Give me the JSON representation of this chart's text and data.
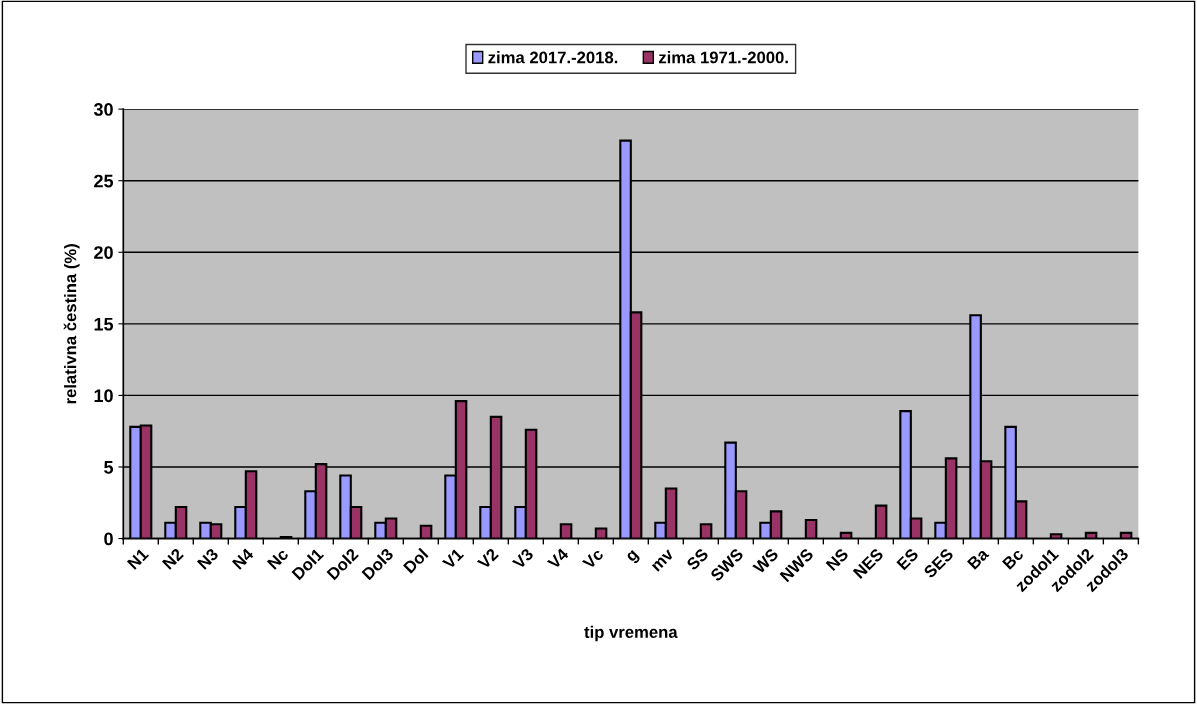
{
  "chart_data": {
    "type": "bar",
    "xlabel": "tip vremena",
    "ylabel": "relativna čestina (%)",
    "categories": [
      "N1",
      "N2",
      "N3",
      "N4",
      "Nc",
      "Dol1",
      "Dol2",
      "Dol3",
      "Dol",
      "V1",
      "V2",
      "V3",
      "V4",
      "Vc",
      "g",
      "mv",
      "SS",
      "SWS",
      "WS",
      "NWS",
      "NS",
      "NES",
      "ES",
      "SES",
      "Ba",
      "Bc",
      "zodol1",
      "zodol2",
      "zodol3"
    ],
    "series": [
      {
        "name": "zima 2017.-2018.",
        "color": "#9999ff",
        "values": [
          7.8,
          1.1,
          1.1,
          2.2,
          null,
          3.3,
          4.4,
          1.1,
          null,
          4.4,
          2.2,
          2.2,
          null,
          null,
          27.8,
          1.1,
          null,
          6.7,
          1.1,
          null,
          null,
          null,
          8.9,
          1.1,
          15.6,
          7.8,
          null,
          null,
          null
        ]
      },
      {
        "name": "zima 1971.-2000.",
        "color": "#993366",
        "values": [
          7.9,
          2.2,
          1.0,
          4.7,
          0.1,
          5.2,
          2.2,
          1.4,
          0.9,
          9.6,
          8.5,
          7.6,
          1.0,
          0.7,
          15.8,
          3.5,
          1.0,
          3.3,
          1.9,
          1.3,
          0.4,
          2.3,
          1.4,
          5.6,
          5.4,
          2.6,
          0.3,
          0.4,
          0.4
        ]
      }
    ],
    "ylim": [
      0,
      30
    ],
    "yticks": [
      0,
      5,
      10,
      15,
      20,
      25,
      30
    ],
    "grid": "y",
    "legend": "top"
  }
}
